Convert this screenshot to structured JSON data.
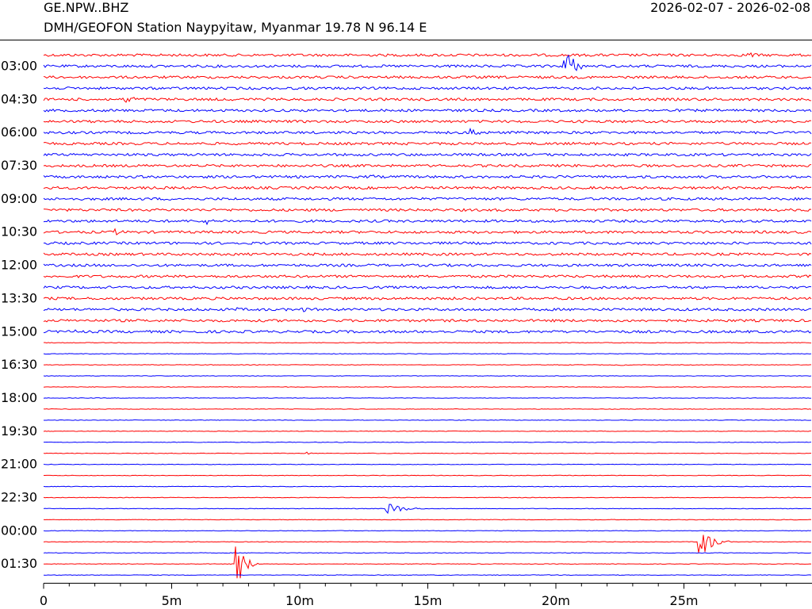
{
  "header": {
    "station_code": "GE.NPW..BHZ",
    "station_desc": "DMH/GEOFON Station Naypyitaw, Myanmar  19.78 N 96.14 E",
    "date_range": "2026-02-07 - 2026-02-08"
  },
  "chart_data": {
    "type": "line",
    "title": "GE.NPW..BHZ",
    "subtitle": "DMH/GEOFON Station Naypyitaw, Myanmar  19.78 N 96.14 E",
    "xlabel": "",
    "ylabel": "",
    "x_unit": "minutes",
    "xlim": [
      0,
      30
    ],
    "x_ticks": [
      {
        "value": 0,
        "label": "0"
      },
      {
        "value": 5,
        "label": "5m"
      },
      {
        "value": 10,
        "label": "10m"
      },
      {
        "value": 15,
        "label": "15m"
      },
      {
        "value": 20,
        "label": "20m"
      },
      {
        "value": 25,
        "label": "25m"
      }
    ],
    "trace_interval_minutes": 30,
    "num_traces": 48,
    "y_ticks": [
      "03:00",
      "04:30",
      "06:00",
      "07:30",
      "09:00",
      "10:30",
      "12:00",
      "13:30",
      "15:00",
      "16:30",
      "18:00",
      "19:30",
      "21:00",
      "22:30",
      "00:00",
      "01:30"
    ],
    "colors": {
      "odd": "#ff0000",
      "even": "#0000ff"
    },
    "grid": false,
    "legend": "none",
    "events": [
      {
        "trace": 0,
        "minute": 6.0,
        "amp": 0.25,
        "dur": 0.3
      },
      {
        "trace": 0,
        "minute": 27.5,
        "amp": 0.35,
        "dur": 1.2
      },
      {
        "trace": 1,
        "minute": 20.3,
        "amp": 2.6,
        "dur": 0.9
      },
      {
        "trace": 4,
        "minute": 3.2,
        "amp": 0.5,
        "dur": 1.2
      },
      {
        "trace": 7,
        "minute": 16.7,
        "amp": 0.5,
        "dur": 1.3
      },
      {
        "trace": 11,
        "minute": 12.7,
        "amp": 0.3,
        "dur": 1.0
      },
      {
        "trace": 11,
        "minute": 20.2,
        "amp": 0.3,
        "dur": 0.6
      },
      {
        "trace": 15,
        "minute": 6.3,
        "amp": 0.5,
        "dur": 0.6
      },
      {
        "trace": 16,
        "minute": 2.8,
        "amp": 0.3,
        "dur": 1.2
      },
      {
        "trace": 18,
        "minute": 15.3,
        "amp": 0.25,
        "dur": 0.5
      },
      {
        "trace": 23,
        "minute": 7.5,
        "amp": 0.2,
        "dur": 1.5
      },
      {
        "trace": 23,
        "minute": 10.0,
        "amp": 0.3,
        "dur": 1.2
      },
      {
        "trace": 25,
        "minute": 1.2,
        "amp": 0.25,
        "dur": 0.5
      },
      {
        "trace": 28,
        "minute": 22.5,
        "amp": 0.15,
        "dur": 0.4
      },
      {
        "trace": 36,
        "minute": 10.3,
        "amp": 0.25,
        "dur": 0.3
      },
      {
        "trace": 41,
        "minute": 13.4,
        "amp": 0.6,
        "dur": 1.7
      },
      {
        "trace": 44,
        "minute": 25.6,
        "amp": 1.7,
        "dur": 1.2
      },
      {
        "trace": 46,
        "minute": 7.5,
        "amp": 2.5,
        "dur": 0.9
      }
    ]
  }
}
